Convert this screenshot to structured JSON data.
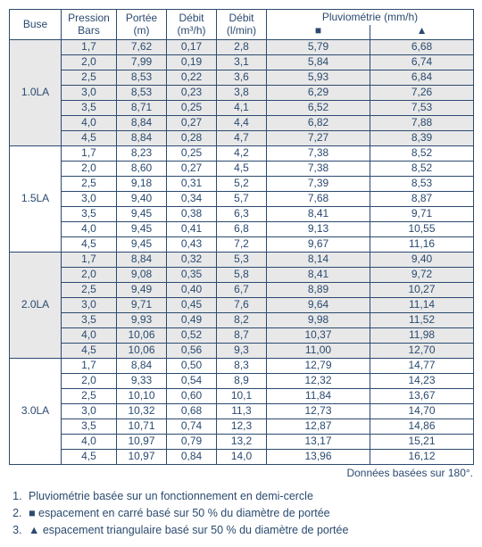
{
  "headers": {
    "buse": "Buse",
    "pression": "Pression\nBars",
    "portee": "Portée\n(m)",
    "debit_m3h": "Débit\n(m³/h)",
    "debit_lmin": "Débit\n(l/min)",
    "pluv": "Pluviométrie (mm/h)",
    "pluv_sym_sq": "■",
    "pluv_sym_tri": "▲"
  },
  "groups": [
    {
      "buse": "1.0LA",
      "shaded": true,
      "rows": [
        {
          "p": "1,7",
          "po": "7,62",
          "m3": "0,17",
          "lm": "2,8",
          "sq": "5,79",
          "tr": "6,68"
        },
        {
          "p": "2,0",
          "po": "7,99",
          "m3": "0,19",
          "lm": "3,1",
          "sq": "5,84",
          "tr": "6,74"
        },
        {
          "p": "2,5",
          "po": "8,53",
          "m3": "0,22",
          "lm": "3,6",
          "sq": "5,93",
          "tr": "6,84"
        },
        {
          "p": "3,0",
          "po": "8,53",
          "m3": "0,23",
          "lm": "3,8",
          "sq": "6,29",
          "tr": "7,26"
        },
        {
          "p": "3,5",
          "po": "8,71",
          "m3": "0,25",
          "lm": "4,1",
          "sq": "6,52",
          "tr": "7,53"
        },
        {
          "p": "4,0",
          "po": "8,84",
          "m3": "0,27",
          "lm": "4,4",
          "sq": "6,82",
          "tr": "7,88"
        },
        {
          "p": "4,5",
          "po": "8,84",
          "m3": "0,28",
          "lm": "4,7",
          "sq": "7,27",
          "tr": "8,39"
        }
      ]
    },
    {
      "buse": "1.5LA",
      "shaded": false,
      "rows": [
        {
          "p": "1,7",
          "po": "8,23",
          "m3": "0,25",
          "lm": "4,2",
          "sq": "7,38",
          "tr": "8,52"
        },
        {
          "p": "2,0",
          "po": "8,60",
          "m3": "0,27",
          "lm": "4,5",
          "sq": "7,38",
          "tr": "8,52"
        },
        {
          "p": "2,5",
          "po": "9,18",
          "m3": "0,31",
          "lm": "5,2",
          "sq": "7,39",
          "tr": "8,53"
        },
        {
          "p": "3,0",
          "po": "9,40",
          "m3": "0,34",
          "lm": "5,7",
          "sq": "7,68",
          "tr": "8,87"
        },
        {
          "p": "3,5",
          "po": "9,45",
          "m3": "0,38",
          "lm": "6,3",
          "sq": "8,41",
          "tr": "9,71"
        },
        {
          "p": "4,0",
          "po": "9,45",
          "m3": "0,41",
          "lm": "6,8",
          "sq": "9,13",
          "tr": "10,55"
        },
        {
          "p": "4,5",
          "po": "9,45",
          "m3": "0,43",
          "lm": "7,2",
          "sq": "9,67",
          "tr": "11,16"
        }
      ]
    },
    {
      "buse": "2.0LA",
      "shaded": true,
      "rows": [
        {
          "p": "1,7",
          "po": "8,84",
          "m3": "0,32",
          "lm": "5,3",
          "sq": "8,14",
          "tr": "9,40"
        },
        {
          "p": "2,0",
          "po": "9,08",
          "m3": "0,35",
          "lm": "5,8",
          "sq": "8,41",
          "tr": "9,72"
        },
        {
          "p": "2,5",
          "po": "9,49",
          "m3": "0,40",
          "lm": "6,7",
          "sq": "8,89",
          "tr": "10,27"
        },
        {
          "p": "3,0",
          "po": "9,71",
          "m3": "0,45",
          "lm": "7,6",
          "sq": "9,64",
          "tr": "11,14"
        },
        {
          "p": "3,5",
          "po": "9,93",
          "m3": "0,49",
          "lm": "8,2",
          "sq": "9,98",
          "tr": "11,52"
        },
        {
          "p": "4,0",
          "po": "10,06",
          "m3": "0,52",
          "lm": "8,7",
          "sq": "10,37",
          "tr": "11,98"
        },
        {
          "p": "4,5",
          "po": "10,06",
          "m3": "0,56",
          "lm": "9,3",
          "sq": "11,00",
          "tr": "12,70"
        }
      ]
    },
    {
      "buse": "3.0LA",
      "shaded": false,
      "rows": [
        {
          "p": "1,7",
          "po": "8,84",
          "m3": "0,50",
          "lm": "8,3",
          "sq": "12,79",
          "tr": "14,77"
        },
        {
          "p": "2,0",
          "po": "9,33",
          "m3": "0,54",
          "lm": "8,9",
          "sq": "12,32",
          "tr": "14,23"
        },
        {
          "p": "2,5",
          "po": "10,10",
          "m3": "0,60",
          "lm": "10,1",
          "sq": "11,84",
          "tr": "13,67"
        },
        {
          "p": "3,0",
          "po": "10,32",
          "m3": "0,68",
          "lm": "11,3",
          "sq": "12,73",
          "tr": "14,70"
        },
        {
          "p": "3,5",
          "po": "10,71",
          "m3": "0,74",
          "lm": "12,3",
          "sq": "12,87",
          "tr": "14,86"
        },
        {
          "p": "4,0",
          "po": "10,97",
          "m3": "0,79",
          "lm": "13,2",
          "sq": "13,17",
          "tr": "15,21"
        },
        {
          "p": "4,5",
          "po": "10,97",
          "m3": "0,84",
          "lm": "14,0",
          "sq": "13,96",
          "tr": "16,12"
        }
      ]
    }
  ],
  "footer_right": "Données basées sur 180°.",
  "notes": [
    "Pluviométrie basée sur un fonctionnement en demi-cercle",
    "■ espacement en carré basé sur 50 % du diamètre de portée",
    "▲ espacement triangulaire basé sur 50 % du diamètre de portée"
  ]
}
